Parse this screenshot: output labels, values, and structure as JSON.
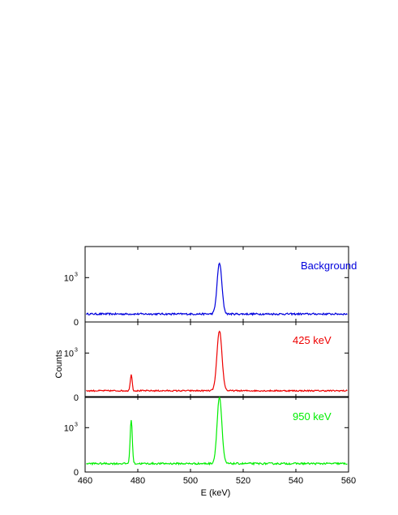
{
  "chart_data": {
    "type": "line",
    "layout": "stacked-panels",
    "xlabel": "E (keV)",
    "ylabel": "Counts",
    "xlim": [
      460,
      560
    ],
    "x_ticks": [
      "460",
      "480",
      "500",
      "520",
      "540",
      "560"
    ],
    "y_tick_labels": {
      "zero": "0",
      "thousand_base": "10",
      "thousand_exp": "3"
    },
    "grid": false,
    "panels": [
      {
        "name": "Background",
        "label": "Background",
        "color": "#0000dd",
        "baseline": 180,
        "noise": 40,
        "peaks": [
          {
            "center": 511.0,
            "height": 1150,
            "sigma": 0.9
          }
        ]
      },
      {
        "name": "425 keV",
        "label": "425 keV",
        "color": "#ee0000",
        "baseline": 150,
        "noise": 30,
        "peaks": [
          {
            "center": 477.5,
            "height": 380,
            "sigma": 0.35
          },
          {
            "center": 511.0,
            "height": 1350,
            "sigma": 0.95
          }
        ]
      },
      {
        "name": "950 keV",
        "label": "950 keV",
        "color": "#00ee00",
        "baseline": 190,
        "noise": 40,
        "peaks": [
          {
            "center": 477.5,
            "height": 1000,
            "sigma": 0.4
          },
          {
            "center": 511.0,
            "height": 1500,
            "sigma": 0.9
          }
        ]
      }
    ]
  }
}
